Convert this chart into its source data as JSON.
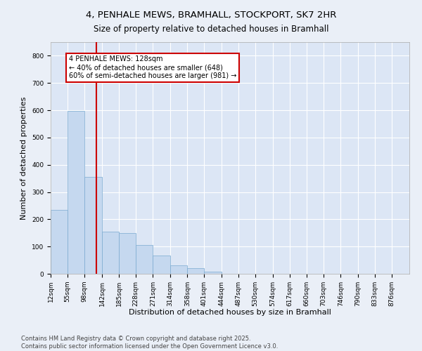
{
  "title_line1": "4, PENHALE MEWS, BRAMHALL, STOCKPORT, SK7 2HR",
  "title_line2": "Size of property relative to detached houses in Bramhall",
  "xlabel": "Distribution of detached houses by size in Bramhall",
  "ylabel": "Number of detached properties",
  "bar_color": "#c5d8ef",
  "bar_edge_color": "#7aaad0",
  "vline_x": 128,
  "vline_color": "#cc0000",
  "annotation_text": "4 PENHALE MEWS: 128sqm\n← 40% of detached houses are smaller (648)\n60% of semi-detached houses are larger (981) →",
  "annotation_box_color": "#ffffff",
  "annotation_box_edge": "#cc0000",
  "categories": [
    "12sqm",
    "55sqm",
    "98sqm",
    "142sqm",
    "185sqm",
    "228sqm",
    "271sqm",
    "314sqm",
    "358sqm",
    "401sqm",
    "444sqm",
    "487sqm",
    "530sqm",
    "574sqm",
    "617sqm",
    "660sqm",
    "703sqm",
    "746sqm",
    "790sqm",
    "833sqm",
    "876sqm"
  ],
  "bar_heights": [
    235,
    598,
    355,
    155,
    150,
    105,
    68,
    30,
    20,
    8,
    0,
    0,
    0,
    0,
    0,
    0,
    0,
    0,
    0,
    0,
    0
  ],
  "bin_edges": [
    12,
    55,
    98,
    142,
    185,
    228,
    271,
    314,
    358,
    401,
    444,
    487,
    530,
    574,
    617,
    660,
    703,
    746,
    790,
    833,
    876,
    920
  ],
  "ylim": [
    0,
    850
  ],
  "yticks": [
    0,
    100,
    200,
    300,
    400,
    500,
    600,
    700,
    800
  ],
  "background_color": "#eaeff7",
  "plot_background": "#dce6f5",
  "grid_color": "#ffffff",
  "footer_text": "Contains HM Land Registry data © Crown copyright and database right 2025.\nContains public sector information licensed under the Open Government Licence v3.0.",
  "title_fontsize": 9.5,
  "subtitle_fontsize": 8.5,
  "axis_label_fontsize": 8,
  "tick_fontsize": 6.5,
  "footer_fontsize": 6,
  "annotation_fontsize": 7
}
